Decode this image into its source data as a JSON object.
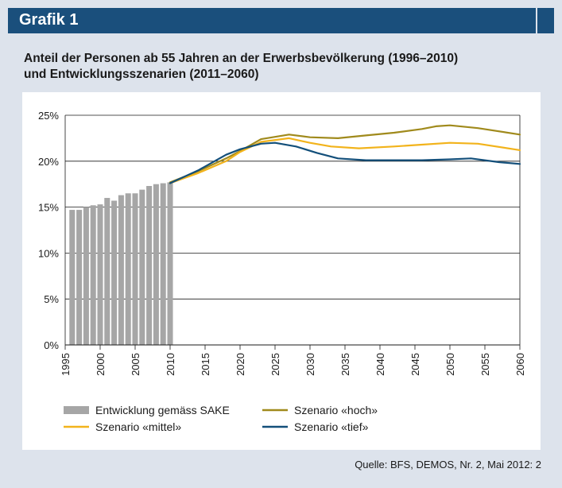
{
  "header": {
    "title": "Grafik 1"
  },
  "chart_title": {
    "line1": "Anteil der Personen ab 55 Jahren an der Erwerbsbevölkerung (1996–2010)",
    "line2": "und Entwicklungsszenarien (2011–2060)"
  },
  "source": "Quelle: BFS, DEMOS, Nr. 2, Mai 2012: 2",
  "chart_data": {
    "type": "bar+line",
    "xlim": [
      1995,
      2060
    ],
    "ylim": [
      0,
      25
    ],
    "grid": true,
    "legend_placement": "bottom",
    "x_ticks": [
      1995,
      2000,
      2005,
      2010,
      2015,
      2020,
      2025,
      2030,
      2035,
      2040,
      2045,
      2050,
      2055,
      2060
    ],
    "y_ticks": [
      {
        "value": 0,
        "label": "0%"
      },
      {
        "value": 5,
        "label": "5%"
      },
      {
        "value": 10,
        "label": "10%"
      },
      {
        "value": 15,
        "label": "15%"
      },
      {
        "value": 20,
        "label": "20%"
      },
      {
        "value": 25,
        "label": "25%"
      }
    ],
    "bars": {
      "name": "Entwicklung gemäss SAKE",
      "color": "#a6a6a6",
      "x": [
        1996,
        1997,
        1998,
        1999,
        2000,
        2001,
        2002,
        2003,
        2004,
        2005,
        2006,
        2007,
        2008,
        2009,
        2010
      ],
      "values": [
        14.7,
        14.7,
        15.0,
        15.2,
        15.3,
        16.0,
        15.7,
        16.3,
        16.5,
        16.5,
        16.9,
        17.3,
        17.5,
        17.6,
        17.7
      ]
    },
    "series": [
      {
        "name": "Szenario «hoch»",
        "color": "#a08a1c",
        "points": [
          [
            2010,
            17.7
          ],
          [
            2014,
            18.9
          ],
          [
            2018,
            20.3
          ],
          [
            2020,
            21.1
          ],
          [
            2023,
            22.4
          ],
          [
            2027,
            22.9
          ],
          [
            2030,
            22.6
          ],
          [
            2034,
            22.5
          ],
          [
            2038,
            22.8
          ],
          [
            2042,
            23.1
          ],
          [
            2046,
            23.5
          ],
          [
            2048,
            23.8
          ],
          [
            2050,
            23.9
          ],
          [
            2054,
            23.6
          ],
          [
            2060,
            22.9
          ]
        ]
      },
      {
        "name": "Szenario «mittel»",
        "color": "#f2b31b",
        "points": [
          [
            2010,
            17.6
          ],
          [
            2014,
            18.7
          ],
          [
            2018,
            20.0
          ],
          [
            2020,
            21.0
          ],
          [
            2023,
            22.1
          ],
          [
            2027,
            22.5
          ],
          [
            2030,
            22.0
          ],
          [
            2033,
            21.6
          ],
          [
            2037,
            21.4
          ],
          [
            2042,
            21.6
          ],
          [
            2046,
            21.8
          ],
          [
            2050,
            22.0
          ],
          [
            2054,
            21.9
          ],
          [
            2060,
            21.2
          ]
        ]
      },
      {
        "name": "Szenario «tief»",
        "color": "#134f7a",
        "points": [
          [
            2010,
            17.6
          ],
          [
            2014,
            19.0
          ],
          [
            2018,
            20.7
          ],
          [
            2020,
            21.3
          ],
          [
            2023,
            21.9
          ],
          [
            2025,
            22.0
          ],
          [
            2028,
            21.6
          ],
          [
            2031,
            20.9
          ],
          [
            2034,
            20.3
          ],
          [
            2038,
            20.1
          ],
          [
            2042,
            20.1
          ],
          [
            2046,
            20.1
          ],
          [
            2050,
            20.2
          ],
          [
            2053,
            20.3
          ],
          [
            2057,
            19.9
          ],
          [
            2060,
            19.7
          ]
        ]
      }
    ]
  }
}
